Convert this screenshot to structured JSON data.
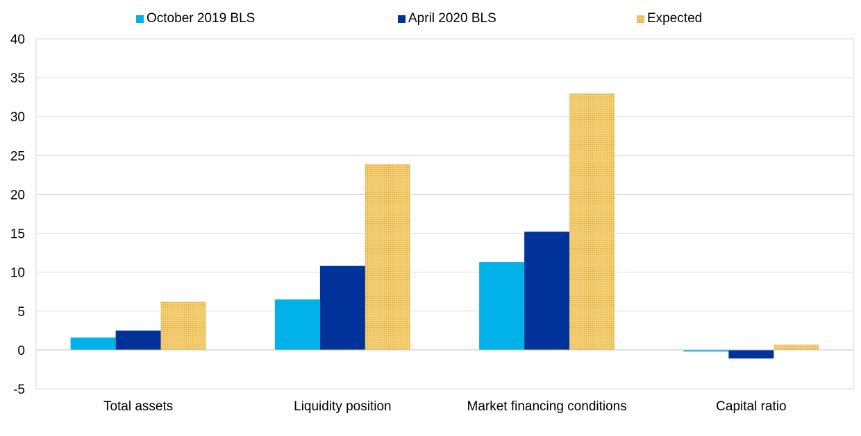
{
  "chart_data": {
    "type": "bar",
    "categories": [
      "Total assets",
      "Liquidity position",
      "Market financing conditions",
      "Capital ratio"
    ],
    "series": [
      {
        "name": "October 2019 BLS",
        "values": [
          1.6,
          6.5,
          11.3,
          -0.2
        ],
        "color": "#00b1ea"
      },
      {
        "name": "April 2020 BLS",
        "values": [
          2.5,
          10.8,
          15.2,
          -1.1
        ],
        "color": "#003299"
      },
      {
        "name": "Expected",
        "values": [
          6.2,
          23.9,
          33.0,
          0.7
        ],
        "color": "#f3c35b",
        "pattern": "dotted"
      }
    ],
    "ylim": [
      -5,
      40
    ],
    "yticks": [
      -5,
      0,
      5,
      10,
      15,
      20,
      25,
      30,
      35,
      40
    ],
    "grid": true,
    "legend": "top-center"
  }
}
